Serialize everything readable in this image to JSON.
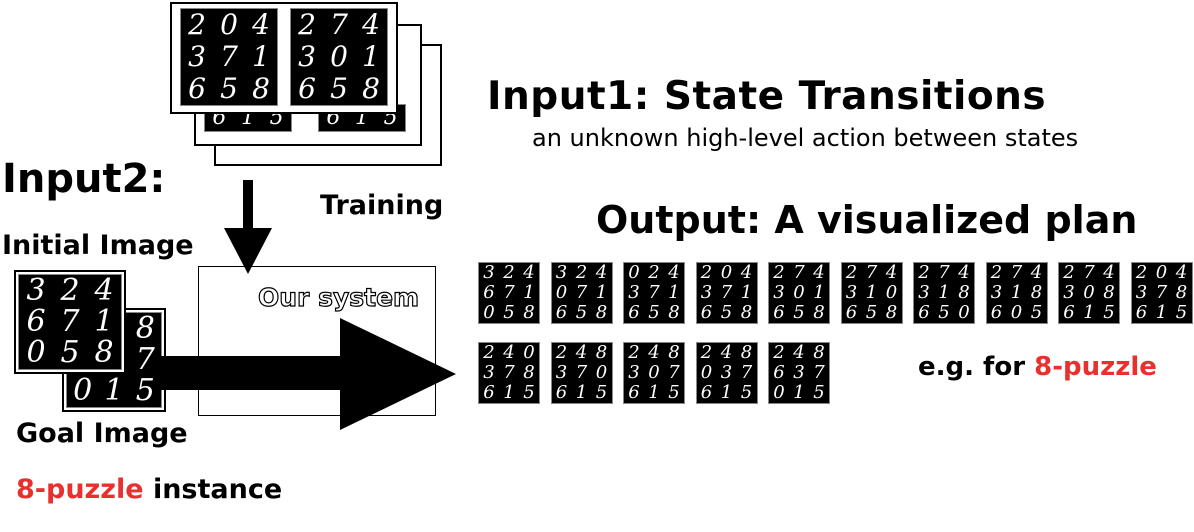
{
  "labels": {
    "input1_title": "Input1: State Transitions",
    "input1_subtitle": "an unknown high-level action between states",
    "input2_title": "Input2:",
    "training": "Training",
    "initial_image": "Initial Image",
    "goal_image": "Goal Image",
    "instance_red": "8-puzzle",
    "instance_rest": " instance",
    "our_system": "Our system",
    "output_title": "Output: A visualized plan",
    "eg_prefix": "e.g. for ",
    "eg_red": "8-puzzle"
  },
  "colors": {
    "accent_red": "#e8312f"
  },
  "training_pairs": {
    "front_left": [
      "2",
      "0",
      "4",
      "3",
      "7",
      "1",
      "6",
      "5",
      "8"
    ],
    "front_right": [
      "2",
      "7",
      "4",
      "3",
      "0",
      "1",
      "6",
      "5",
      "8"
    ],
    "back_row_left": [
      "6",
      "1",
      "5"
    ],
    "back_row_right": [
      "6",
      "1",
      "5"
    ]
  },
  "initial_state": [
    "3",
    "2",
    "4",
    "6",
    "7",
    "1",
    "0",
    "5",
    "8"
  ],
  "goal_state": [
    "",
    "",
    "8",
    "",
    "",
    "7",
    "0",
    "1",
    "5"
  ],
  "plan_row1": [
    [
      "3",
      "2",
      "4",
      "6",
      "7",
      "1",
      "0",
      "5",
      "8"
    ],
    [
      "3",
      "2",
      "4",
      "0",
      "7",
      "1",
      "6",
      "5",
      "8"
    ],
    [
      "0",
      "2",
      "4",
      "3",
      "7",
      "1",
      "6",
      "5",
      "8"
    ],
    [
      "2",
      "0",
      "4",
      "3",
      "7",
      "1",
      "6",
      "5",
      "8"
    ],
    [
      "2",
      "7",
      "4",
      "3",
      "0",
      "1",
      "6",
      "5",
      "8"
    ],
    [
      "2",
      "7",
      "4",
      "3",
      "1",
      "0",
      "6",
      "5",
      "8"
    ],
    [
      "2",
      "7",
      "4",
      "3",
      "1",
      "8",
      "6",
      "5",
      "0"
    ],
    [
      "2",
      "7",
      "4",
      "3",
      "1",
      "8",
      "6",
      "0",
      "5"
    ],
    [
      "2",
      "7",
      "4",
      "3",
      "0",
      "8",
      "6",
      "1",
      "5"
    ],
    [
      "2",
      "0",
      "4",
      "3",
      "7",
      "8",
      "6",
      "1",
      "5"
    ]
  ],
  "plan_row2": [
    [
      "2",
      "4",
      "0",
      "3",
      "7",
      "8",
      "6",
      "1",
      "5"
    ],
    [
      "2",
      "4",
      "8",
      "3",
      "7",
      "0",
      "6",
      "1",
      "5"
    ],
    [
      "2",
      "4",
      "8",
      "3",
      "0",
      "7",
      "6",
      "1",
      "5"
    ],
    [
      "2",
      "4",
      "8",
      "0",
      "3",
      "7",
      "6",
      "1",
      "5"
    ],
    [
      "2",
      "4",
      "8",
      "6",
      "3",
      "7",
      "0",
      "1",
      "5"
    ]
  ]
}
